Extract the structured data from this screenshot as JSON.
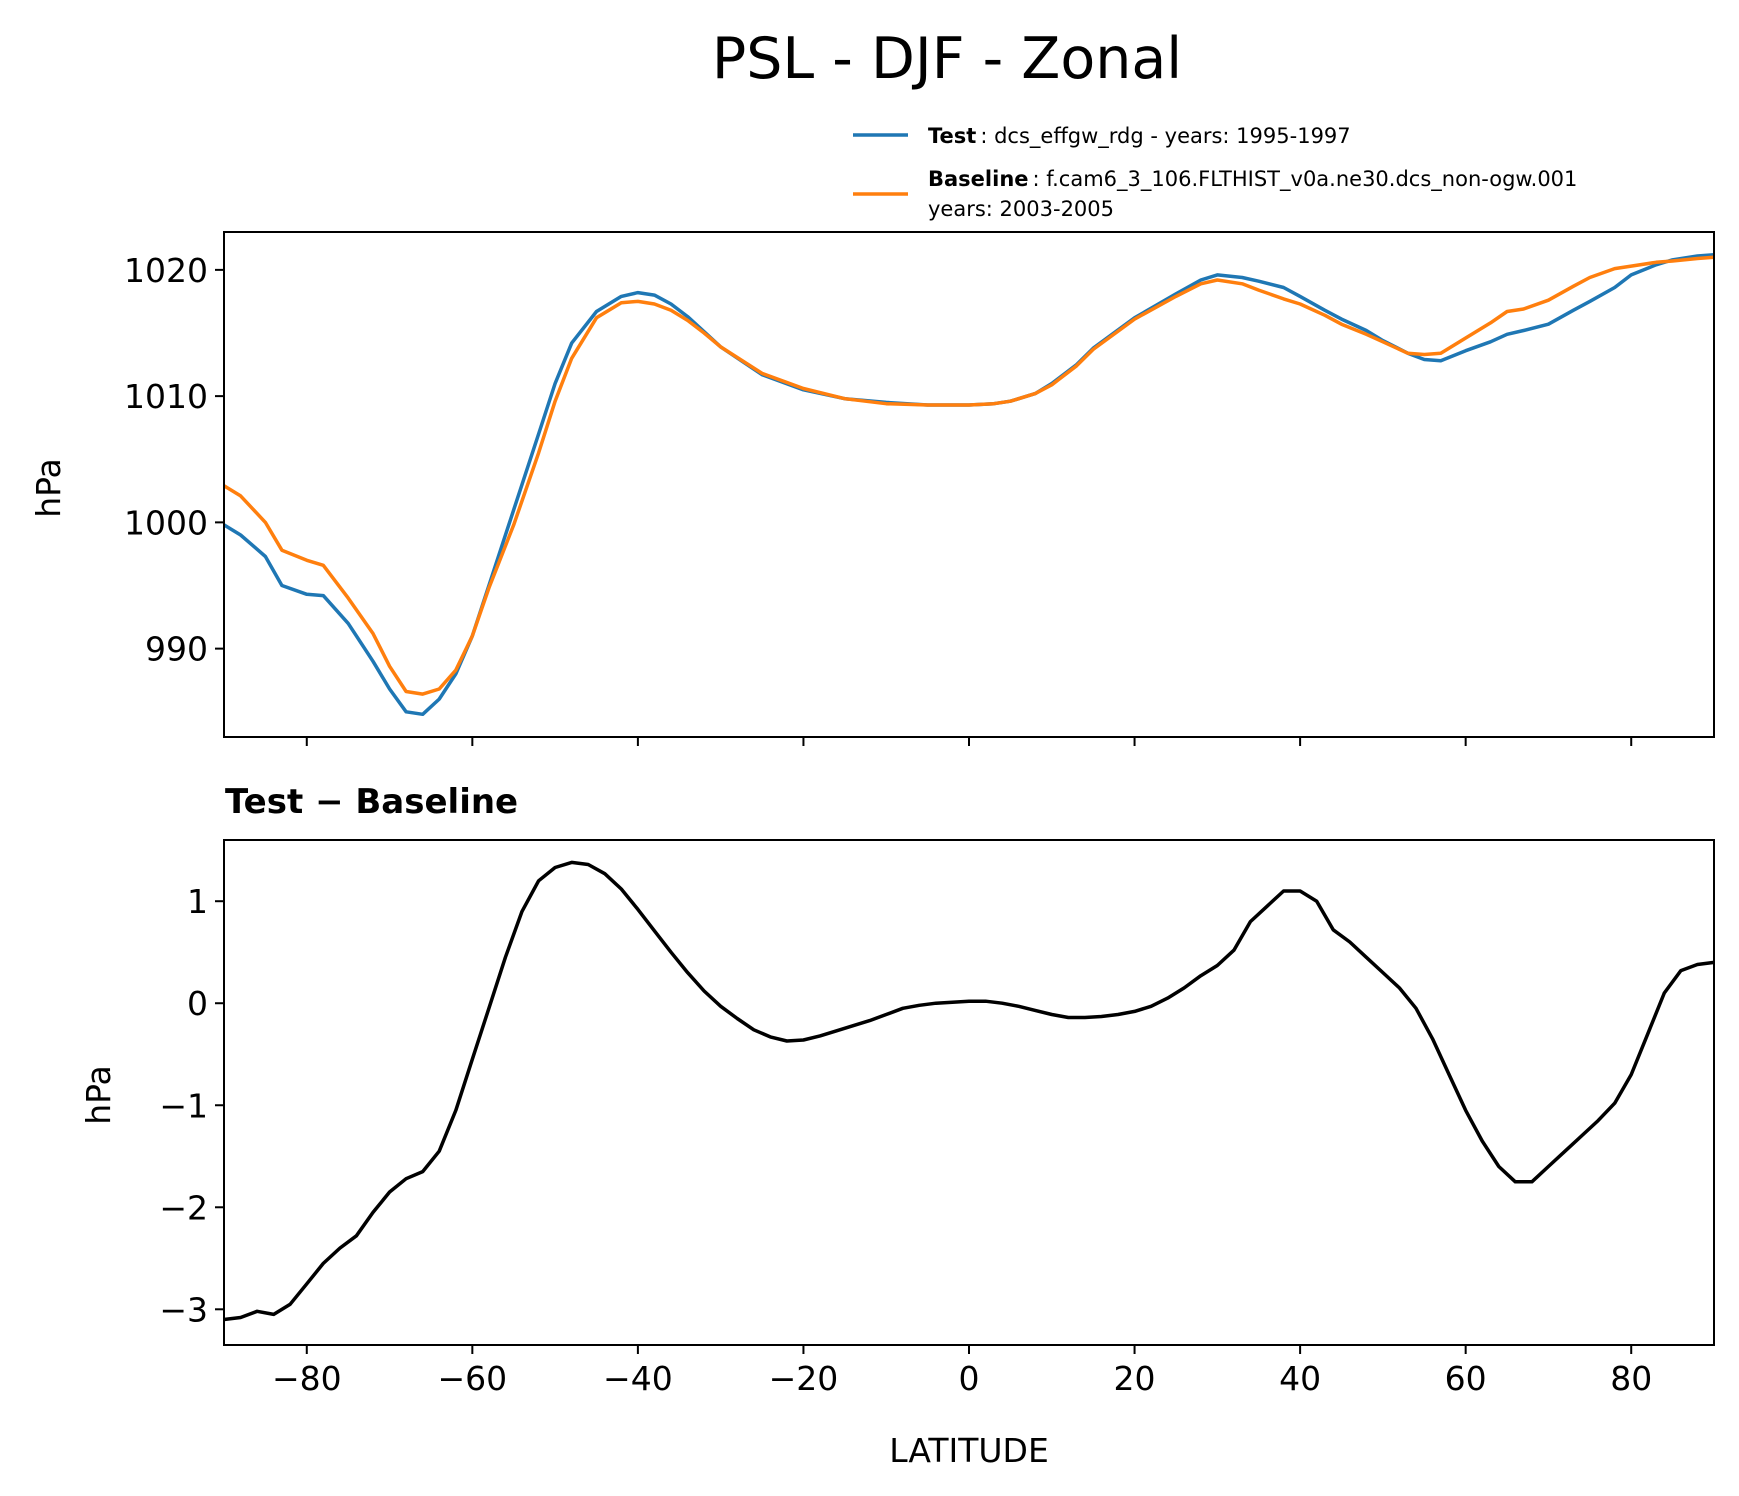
{
  "chart_data": [
    {
      "type": "line",
      "title": "PSL - DJF - Zonal",
      "xlabel": "",
      "ylabel": "hPa",
      "xlim": [
        -90,
        90
      ],
      "ylim": [
        983,
        1023
      ],
      "yticks": [
        990,
        1000,
        1010,
        1020
      ],
      "xticks": [
        -80,
        -60,
        -40,
        -20,
        0,
        20,
        40,
        60,
        80
      ],
      "grid": false,
      "legend_position": "top-right, above plot",
      "series": [
        {
          "name": "Test",
          "legend_label": "Test",
          "legend_detail": ": dcs_effgw_rdg - years: 1995-1997",
          "color": "#1f77b4",
          "x": [
            -90,
            -88,
            -85,
            -83,
            -80,
            -78,
            -75,
            -72,
            -70,
            -68,
            -66,
            -64,
            -62,
            -60,
            -58,
            -55,
            -52,
            -50,
            -48,
            -45,
            -42,
            -40,
            -38,
            -36,
            -34,
            -32,
            -30,
            -25,
            -20,
            -15,
            -10,
            -5,
            0,
            3,
            5,
            8,
            10,
            13,
            15,
            20,
            25,
            28,
            30,
            33,
            35,
            38,
            40,
            43,
            45,
            48,
            50,
            53,
            55,
            57,
            60,
            63,
            65,
            67,
            70,
            73,
            75,
            78,
            80,
            83,
            85,
            88,
            90
          ],
          "values": [
            999.8,
            999,
            997.3,
            995,
            994.3,
            994.2,
            992,
            989,
            986.8,
            985,
            984.8,
            986,
            988,
            991,
            995,
            1001,
            1007,
            1011,
            1014.2,
            1016.7,
            1017.9,
            1018.2,
            1018,
            1017.3,
            1016.3,
            1015.1,
            1013.9,
            1011.7,
            1010.5,
            1009.8,
            1009.5,
            1009.3,
            1009.3,
            1009.4,
            1009.6,
            1010.2,
            1011,
            1012.5,
            1013.8,
            1016.2,
            1018.1,
            1019.2,
            1019.6,
            1019.4,
            1019.1,
            1018.6,
            1017.9,
            1016.8,
            1016.1,
            1015.2,
            1014.4,
            1013.4,
            1012.9,
            1012.8,
            1013.6,
            1014.3,
            1014.9,
            1015.2,
            1015.7,
            1016.8,
            1017.5,
            1018.6,
            1019.6,
            1020.4,
            1020.8,
            1021.1,
            1021.2
          ]
        },
        {
          "name": "Baseline",
          "legend_label": "Baseline",
          "legend_detail": ": f.cam6_3_106.FLTHIST_v0a.ne30.dcs_non-ogw.001",
          "legend_detail2": "years: 2003-2005",
          "color": "#ff7f0e",
          "x": [
            -90,
            -88,
            -85,
            -83,
            -80,
            -78,
            -75,
            -72,
            -70,
            -68,
            -66,
            -64,
            -62,
            -60,
            -58,
            -55,
            -52,
            -50,
            -48,
            -45,
            -42,
            -40,
            -38,
            -36,
            -34,
            -32,
            -30,
            -25,
            -20,
            -15,
            -10,
            -5,
            0,
            3,
            5,
            8,
            10,
            13,
            15,
            20,
            25,
            28,
            30,
            33,
            35,
            38,
            40,
            43,
            45,
            48,
            50,
            53,
            55,
            57,
            60,
            63,
            65,
            67,
            70,
            73,
            75,
            78,
            80,
            83,
            85,
            88,
            90
          ],
          "values": [
            1002.9,
            1002.1,
            1000,
            997.8,
            997,
            996.6,
            994,
            991.2,
            988.6,
            986.6,
            986.4,
            986.8,
            988.3,
            991,
            994.8,
            999.8,
            1005.5,
            1009.6,
            1013,
            1016.2,
            1017.4,
            1017.5,
            1017.3,
            1016.8,
            1016,
            1015,
            1013.9,
            1011.8,
            1010.6,
            1009.8,
            1009.4,
            1009.3,
            1009.3,
            1009.4,
            1009.6,
            1010.2,
            1010.9,
            1012.4,
            1013.7,
            1016.1,
            1017.9,
            1018.9,
            1019.2,
            1018.9,
            1018.4,
            1017.7,
            1017.3,
            1016.4,
            1015.7,
            1014.9,
            1014.3,
            1013.4,
            1013.3,
            1013.4,
            1014.6,
            1015.8,
            1016.7,
            1016.9,
            1017.6,
            1018.7,
            1019.4,
            1020.1,
            1020.3,
            1020.6,
            1020.7,
            1020.9,
            1021
          ]
        }
      ]
    },
    {
      "type": "line",
      "title": "Test − Baseline",
      "xlabel": "LATITUDE",
      "ylabel": "hPa",
      "xlim": [
        -90,
        90
      ],
      "ylim": [
        -3.35,
        1.6
      ],
      "yticks": [
        -3,
        -2,
        -1,
        0,
        1
      ],
      "ytick_labels": [
        "−3",
        "−2",
        "−1",
        "0",
        "1"
      ],
      "xticks": [
        -80,
        -60,
        -40,
        -20,
        0,
        20,
        40,
        60,
        80
      ],
      "xtick_labels": [
        "−80",
        "−60",
        "−40",
        "−20",
        "0",
        "20",
        "40",
        "60",
        "80"
      ],
      "grid": false,
      "series": [
        {
          "name": "Test - Baseline",
          "color": "#000000",
          "x": [
            -90,
            -88,
            -86,
            -84,
            -82,
            -80,
            -78,
            -76,
            -74,
            -72,
            -70,
            -68,
            -66,
            -64,
            -62,
            -60,
            -58,
            -56,
            -54,
            -52,
            -50,
            -48,
            -46,
            -44,
            -42,
            -40,
            -38,
            -36,
            -34,
            -32,
            -30,
            -28,
            -26,
            -24,
            -22,
            -20,
            -18,
            -16,
            -14,
            -12,
            -10,
            -8,
            -6,
            -4,
            -2,
            0,
            2,
            4,
            6,
            8,
            10,
            12,
            14,
            16,
            18,
            20,
            22,
            24,
            26,
            28,
            30,
            32,
            34,
            36,
            38,
            40,
            42,
            44,
            46,
            48,
            50,
            52,
            54,
            56,
            58,
            60,
            62,
            64,
            66,
            68,
            70,
            72,
            74,
            76,
            78,
            80,
            82,
            84,
            86,
            88,
            90
          ],
          "values": [
            -3.1,
            -3.08,
            -3.02,
            -3.05,
            -2.95,
            -2.75,
            -2.55,
            -2.4,
            -2.28,
            -2.05,
            -1.85,
            -1.72,
            -1.65,
            -1.45,
            -1.05,
            -0.55,
            -0.05,
            0.45,
            0.9,
            1.2,
            1.33,
            1.38,
            1.36,
            1.27,
            1.12,
            0.92,
            0.71,
            0.5,
            0.3,
            0.12,
            -0.03,
            -0.15,
            -0.26,
            -0.33,
            -0.37,
            -0.36,
            -0.32,
            -0.27,
            -0.22,
            -0.17,
            -0.11,
            -0.05,
            -0.02,
            0,
            0.01,
            0.02,
            0.02,
            0,
            -0.03,
            -0.07,
            -0.11,
            -0.14,
            -0.14,
            -0.13,
            -0.11,
            -0.08,
            -0.03,
            0.05,
            0.15,
            0.27,
            0.37,
            0.52,
            0.8,
            0.95,
            1.1,
            1.1,
            1.0,
            0.72,
            0.6,
            0.45,
            0.3,
            0.15,
            -0.05,
            -0.35,
            -0.7,
            -1.05,
            -1.35,
            -1.6,
            -1.75,
            -1.75,
            -1.6,
            -1.45,
            -1.3,
            -1.15,
            -0.98,
            -0.7,
            -0.3,
            0.1,
            0.32,
            0.38,
            0.4
          ]
        }
      ]
    }
  ]
}
